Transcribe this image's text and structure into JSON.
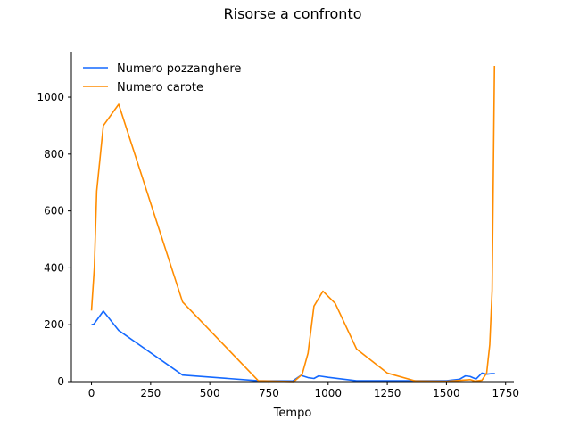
{
  "chart_data": {
    "type": "line",
    "title": "Risorse a confronto",
    "xlabel": "Tempo",
    "ylabel": "",
    "xlim": [
      -85,
      1785
    ],
    "ylim": [
      0,
      1160
    ],
    "xticks": [
      0,
      250,
      500,
      750,
      1000,
      1250,
      1500,
      1750
    ],
    "yticks": [
      0,
      200,
      400,
      600,
      800,
      1000
    ],
    "grid": false,
    "legend_position": "top-left",
    "series": [
      {
        "name": "Numero pozzanghere",
        "color": "#1469ff",
        "points": [
          [
            0,
            200
          ],
          [
            10,
            202
          ],
          [
            50,
            248
          ],
          [
            115,
            180
          ],
          [
            385,
            23
          ],
          [
            705,
            3
          ],
          [
            850,
            2
          ],
          [
            885,
            22
          ],
          [
            915,
            14
          ],
          [
            940,
            11
          ],
          [
            960,
            20
          ],
          [
            1000,
            15
          ],
          [
            1120,
            3
          ],
          [
            1250,
            3
          ],
          [
            1500,
            3
          ],
          [
            1555,
            8
          ],
          [
            1580,
            20
          ],
          [
            1600,
            18
          ],
          [
            1625,
            9
          ],
          [
            1650,
            30
          ],
          [
            1670,
            26
          ],
          [
            1690,
            28
          ],
          [
            1705,
            28
          ]
        ]
      },
      {
        "name": "Numero carote",
        "color": "#ff8c00",
        "points": [
          [
            0,
            250
          ],
          [
            12,
            400
          ],
          [
            22,
            670
          ],
          [
            50,
            900
          ],
          [
            115,
            975
          ],
          [
            385,
            280
          ],
          [
            705,
            3
          ],
          [
            855,
            0
          ],
          [
            890,
            25
          ],
          [
            915,
            100
          ],
          [
            940,
            265
          ],
          [
            978,
            318
          ],
          [
            1030,
            275
          ],
          [
            1120,
            115
          ],
          [
            1250,
            30
          ],
          [
            1370,
            2
          ],
          [
            1500,
            1
          ],
          [
            1600,
            7
          ],
          [
            1620,
            2
          ],
          [
            1650,
            5
          ],
          [
            1670,
            30
          ],
          [
            1683,
            130
          ],
          [
            1693,
            320
          ],
          [
            1703,
            1110
          ]
        ]
      }
    ]
  }
}
